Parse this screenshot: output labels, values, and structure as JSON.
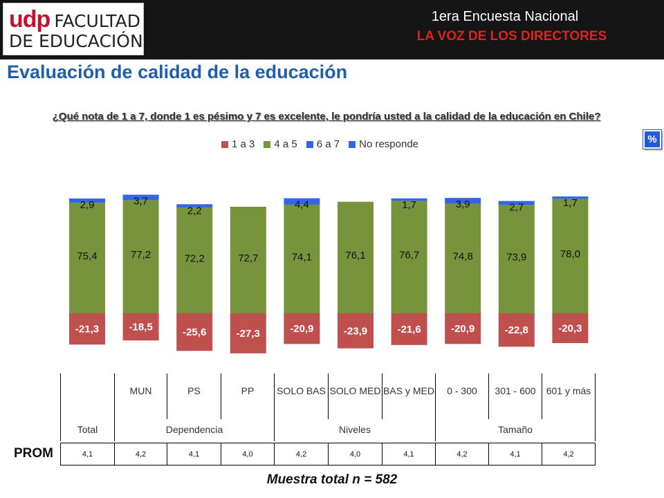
{
  "header": {
    "logo_udp": "udp",
    "logo_line1": "FACULTAD",
    "logo_line2": "DE EDUCACIÓN",
    "survey_title": "1era Encuesta Nacional",
    "survey_subtitle": "LA VOZ DE LOS DIRECTORES"
  },
  "page_title": "Evaluación de calidad de la educación",
  "question": "¿Qué nota de 1 a 7, donde 1 es pésimo y 7 es excelente, le pondría usted a la calidad de la educación en Chile?",
  "badge": "%",
  "prom_label": "PROM",
  "sample": "Muestra total n = 582",
  "colors": {
    "red": "#c0504d",
    "green": "#77933c",
    "blue": "#3366e6"
  },
  "groups": [
    {
      "label": "Total",
      "span": 1
    },
    {
      "label": "Dependencia",
      "span": 3
    },
    {
      "label": "Niveles",
      "span": 3
    },
    {
      "label": "Tamaño",
      "span": 3
    }
  ],
  "chart_data": {
    "type": "bar",
    "categories": [
      "",
      "MUN",
      "PS",
      "PP",
      "SOLO BAS",
      "SOLO MED",
      "BAS y MED",
      "0 - 300",
      "301 - 600",
      "601 y más"
    ],
    "series": [
      {
        "name": "1 a 3",
        "color": "#c0504d",
        "values": [
          -21.3,
          -18.5,
          -25.6,
          -27.3,
          -20.9,
          -23.9,
          -21.6,
          -20.9,
          -22.8,
          -20.3
        ],
        "labels": [
          "-21,3",
          "-18,5",
          "-25,6",
          "-27,3",
          "-20,9",
          "-23,9",
          "-21,6",
          "-20,9",
          "-22,8",
          "-20,3"
        ]
      },
      {
        "name": "4 a 5",
        "color": "#77933c",
        "values": [
          75.4,
          77.2,
          72.2,
          72.7,
          74.1,
          76.1,
          76.7,
          74.8,
          73.9,
          78.0
        ],
        "labels": [
          "75,4",
          "77,2",
          "72,2",
          "72,7",
          "74,1",
          "76,1",
          "76,7",
          "74,8",
          "73,9",
          "78,0"
        ]
      },
      {
        "name": "6 a 7",
        "color": "#3366e6",
        "values": [
          2.9,
          3.7,
          2.2,
          0,
          4.4,
          0,
          1.7,
          3.9,
          2.7,
          1.7
        ],
        "labels": [
          "2,9",
          "3,7",
          "2,2",
          "",
          "4,4",
          "",
          "1,7",
          "3,9",
          "2,7",
          "1,7"
        ]
      },
      {
        "name": "No responde",
        "color": "#3366e6",
        "values": [
          0,
          0,
          0,
          0,
          0,
          0,
          0,
          0,
          0,
          0
        ],
        "labels": [
          "",
          "",
          "",
          "",
          "",
          "",
          "",
          "",
          "",
          ""
        ]
      }
    ],
    "ylabel": "",
    "grid": false,
    "legend": "top"
  },
  "prom": {
    "values": [
      "4,1",
      "4,2",
      "4,1",
      "4,0",
      "4,2",
      "4,0",
      "4,1",
      "4,2",
      "4,1",
      "4,2"
    ]
  }
}
